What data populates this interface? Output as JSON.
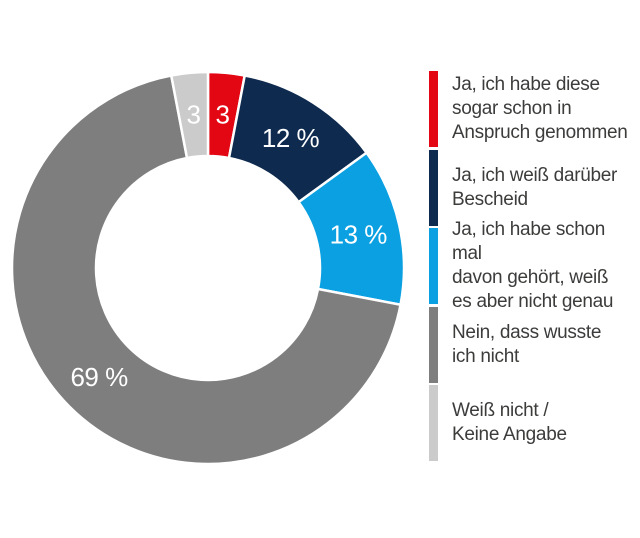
{
  "background": "#ffffff",
  "chart_data": {
    "type": "donut",
    "unit": "%",
    "start_angle_deg": 0,
    "direction": "clockwise",
    "inner_radius_ratio": 0.57,
    "label_color": "#ffffff",
    "legend_position": "right",
    "slices": [
      {
        "name": "Ja, ich habe diese sogar schon in Anspruch genommen",
        "value": 3,
        "label": "3",
        "color": "#e30613"
      },
      {
        "name": "Ja, ich weiß darüber Bescheid",
        "value": 12,
        "label": "12 %",
        "color": "#0e2a4f"
      },
      {
        "name": "Ja, ich habe schon mal davon gehört, weiß es aber nicht genau",
        "value": 13,
        "label": "13 %",
        "color": "#0aa0e2"
      },
      {
        "name": "Nein, dass wusste ich nicht",
        "value": 69,
        "label": "69 %",
        "color": "#7e7e7e"
      },
      {
        "name": "Weiß nicht / Keine Angabe",
        "value": 3,
        "label": "3",
        "color": "#cbcbcb"
      }
    ]
  },
  "legend": {
    "text_color": "#3c3c3b",
    "items": [
      {
        "text": "Ja, ich habe diese\nsogar schon in\nAnspruch genommen",
        "color": "#e30613"
      },
      {
        "text": "Ja, ich weiß darüber\nBescheid",
        "color": "#0e2a4f"
      },
      {
        "text": "Ja, ich habe schon mal\ndavon gehört, weiß\nes aber nicht genau",
        "color": "#0aa0e2"
      },
      {
        "text": "Nein, dass wusste\nich nicht",
        "color": "#7e7e7e"
      },
      {
        "text": "Weiß nicht /\nKeine Angabe",
        "color": "#cbcbcb"
      }
    ]
  }
}
